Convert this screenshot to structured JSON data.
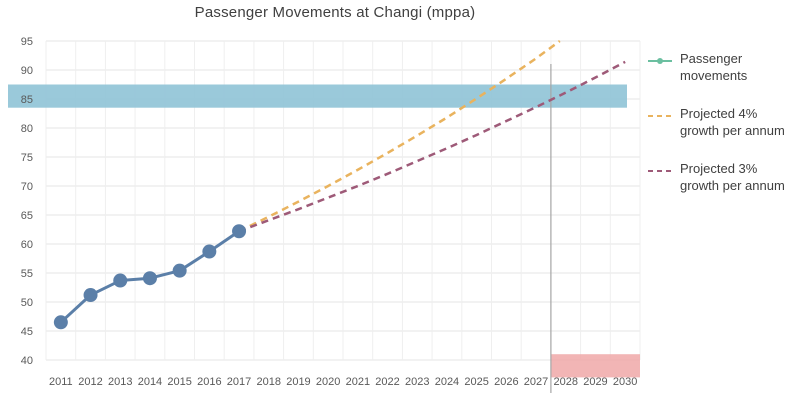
{
  "chart_data": {
    "type": "line",
    "title": "Passenger Movements at Changi (mppa)",
    "xlabel": "",
    "ylabel": "",
    "x": [
      2011,
      2012,
      2013,
      2014,
      2015,
      2016,
      2017,
      2018,
      2019,
      2020,
      2021,
      2022,
      2023,
      2024,
      2025,
      2026,
      2027,
      2028,
      2029,
      2030
    ],
    "ylim": [
      40,
      95
    ],
    "yticks": [
      40,
      45,
      50,
      55,
      60,
      65,
      70,
      75,
      80,
      85,
      90,
      95
    ],
    "grid": true,
    "legend_position": "right",
    "series": [
      {
        "name": "Passenger movements",
        "color": "#5b7fa8",
        "style": "solid-markers",
        "x": [
          2011,
          2012,
          2013,
          2014,
          2015,
          2016,
          2017
        ],
        "values": [
          46.5,
          51.2,
          53.7,
          54.1,
          55.4,
          58.7,
          62.2
        ]
      },
      {
        "name": "Projected 4% growth per annum",
        "color": "#e9b35e",
        "style": "dashed",
        "x": [
          2017,
          2018,
          2019,
          2020,
          2021,
          2022,
          2023,
          2024,
          2025,
          2026,
          2027,
          2027.8
        ],
        "values": [
          62.2,
          64.7,
          67.3,
          70.0,
          72.8,
          75.7,
          78.7,
          81.8,
          85.1,
          88.5,
          92.0,
          95.0
        ]
      },
      {
        "name": "Projected 3% growth per annum",
        "color": "#9e5a78",
        "style": "dashed",
        "x": [
          2017,
          2018,
          2019,
          2020,
          2021,
          2022,
          2023,
          2024,
          2025,
          2026,
          2027,
          2028,
          2029,
          2030
        ],
        "values": [
          62.2,
          64.1,
          66.0,
          68.0,
          70.0,
          72.1,
          74.3,
          76.5,
          78.8,
          81.2,
          83.6,
          86.1,
          88.7,
          91.4
        ]
      }
    ],
    "annotations": {
      "capacity_band": {
        "y_from": 83.5,
        "y_to": 87.5,
        "color": "#8fc3d6"
      },
      "target_line": {
        "x": 2028,
        "color": "#a6a6a6"
      },
      "target_box": {
        "x_from": 2028,
        "x_to": 2030,
        "y_from": 37,
        "y_to": 41,
        "color": "#f0a8a8"
      }
    },
    "legend_labels": {
      "passenger": [
        "Passenger",
        "movements"
      ],
      "proj4": [
        "Projected 4%",
        "growth per annum"
      ],
      "proj3": [
        "Projected 3%",
        "growth per annum"
      ]
    }
  }
}
